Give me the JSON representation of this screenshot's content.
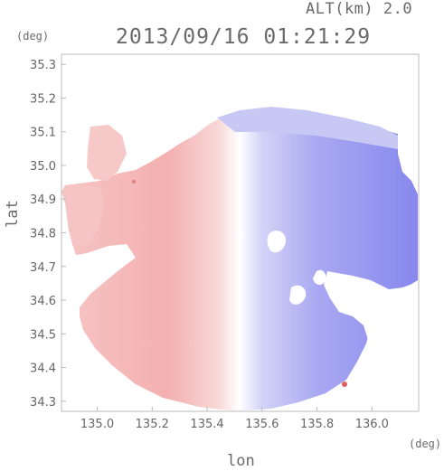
{
  "title_altitude": "ALT(km) 2.0",
  "title_timestamp": "2013/09/16 01:21:29",
  "y_unit": "(deg)",
  "x_unit": "(deg)",
  "y_axis_label": "lat",
  "x_axis_label": "lon",
  "colors": {
    "toward": "#f4b4b4",
    "away": "#8c8cf0",
    "neutral": "#ffffff",
    "frame": "#bbbbbb"
  },
  "chart_data": {
    "type": "heatmap",
    "description_of_field": "radar radial velocity (PPI) at ALT 2.0 km, red west of radar, blue east",
    "radar_center": {
      "lon": 135.52,
      "lat": 34.82
    },
    "xlim": [
      134.87,
      136.17
    ],
    "ylim": [
      34.27,
      35.33
    ],
    "x_ticks": [
      "135.0",
      "135.2",
      "135.4",
      "135.6",
      "135.8",
      "136.0"
    ],
    "x_tick_values": [
      135.0,
      135.2,
      135.4,
      135.6,
      135.8,
      136.0
    ],
    "y_ticks": [
      "35.3",
      "35.2",
      "35.1",
      "35.0",
      "34.9",
      "34.8",
      "34.7",
      "34.6",
      "34.5",
      "34.4",
      "34.3"
    ],
    "y_tick_values": [
      35.3,
      35.2,
      35.1,
      35.0,
      34.9,
      34.8,
      34.7,
      34.6,
      34.5,
      34.4,
      34.3
    ]
  }
}
